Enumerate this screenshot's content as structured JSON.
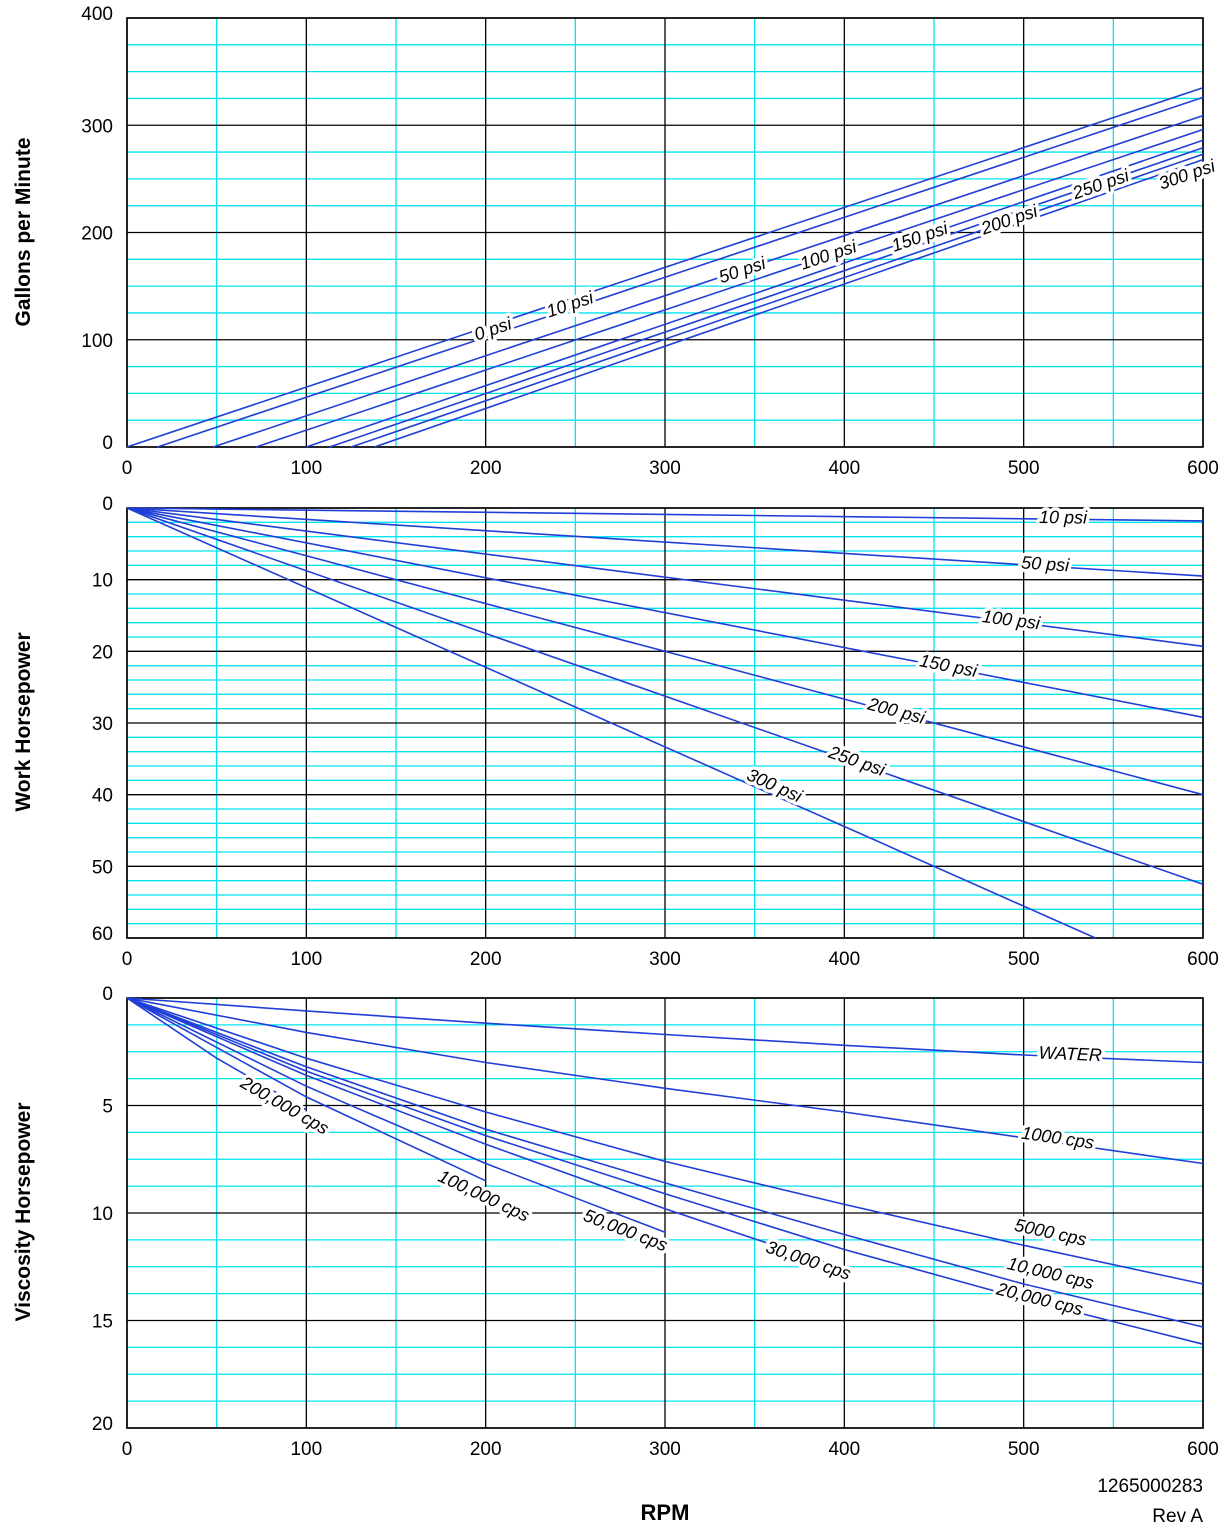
{
  "colors": {
    "major_grid": "#000000",
    "minor_grid": "#00e5f0",
    "curve": "#1f3fd6"
  },
  "chart_data": [
    {
      "type": "line",
      "xlabel": "",
      "ylabel": "Gallons per Minute",
      "xlim": [
        0,
        600
      ],
      "ylim": [
        0,
        400
      ],
      "inverted_y": false,
      "x_ticks": [
        "0",
        "100",
        "200",
        "300",
        "400",
        "500",
        "600"
      ],
      "y_ticks": [
        "0",
        "100",
        "200",
        "300",
        "400"
      ],
      "grid": true,
      "series": [
        {
          "name": "0 psi",
          "x": [
            0,
            600
          ],
          "y": [
            0,
            335
          ]
        },
        {
          "name": "10 psi",
          "x": [
            17,
            600
          ],
          "y": [
            0,
            326
          ]
        },
        {
          "name": "50 psi",
          "x": [
            48,
            600
          ],
          "y": [
            0,
            309
          ]
        },
        {
          "name": "100 psi",
          "x": [
            72,
            600
          ],
          "y": [
            0,
            296
          ]
        },
        {
          "name": "150 psi",
          "x": [
            100,
            600
          ],
          "y": [
            0,
            286
          ]
        },
        {
          "name": "200 psi",
          "x": [
            113,
            600
          ],
          "y": [
            0,
            279
          ]
        },
        {
          "name": "250 psi",
          "x": [
            125,
            600
          ],
          "y": [
            0,
            273
          ]
        },
        {
          "name": "300 psi",
          "x": [
            138,
            600
          ],
          "y": [
            0,
            268
          ]
        }
      ],
      "annotations": [
        {
          "text": "0 psi",
          "x": 204,
          "y": 110
        },
        {
          "text": "10 psi",
          "x": 247,
          "y": 133
        },
        {
          "text": "50 psi",
          "x": 343,
          "y": 165
        },
        {
          "text": "100 psi",
          "x": 391,
          "y": 179
        },
        {
          "text": "150 psi",
          "x": 442,
          "y": 196
        },
        {
          "text": "200 psi",
          "x": 492,
          "y": 212
        },
        {
          "text": "250 psi",
          "x": 543,
          "y": 245
        },
        {
          "text": "300 psi",
          "x": 591,
          "y": 254
        }
      ]
    },
    {
      "type": "line",
      "xlabel": "",
      "ylabel": "Work Horsepower",
      "xlim": [
        0,
        600
      ],
      "ylim": [
        0,
        60
      ],
      "inverted_y": true,
      "x_ticks": [
        "0",
        "100",
        "200",
        "300",
        "400",
        "500",
        "600"
      ],
      "y_ticks": [
        "0",
        "10",
        "20",
        "30",
        "40",
        "50",
        "60"
      ],
      "grid": true,
      "series": [
        {
          "name": "10 psi",
          "x": [
            0,
            600
          ],
          "y": [
            0,
            1.8
          ]
        },
        {
          "name": "50 psi",
          "x": [
            0,
            600
          ],
          "y": [
            0,
            9.5
          ]
        },
        {
          "name": "100 psi",
          "x": [
            0,
            600
          ],
          "y": [
            0,
            19.3
          ]
        },
        {
          "name": "150 psi",
          "x": [
            0,
            600
          ],
          "y": [
            0,
            29.2
          ]
        },
        {
          "name": "200 psi",
          "x": [
            0,
            600
          ],
          "y": [
            0,
            40.0
          ]
        },
        {
          "name": "250 psi",
          "x": [
            0,
            600
          ],
          "y": [
            0,
            52.5
          ]
        },
        {
          "name": "300 psi",
          "x": [
            0,
            540
          ],
          "y": [
            0,
            60
          ]
        }
      ],
      "annotations": [
        {
          "text": "10 psi",
          "x": 522,
          "y": 1.3
        },
        {
          "text": "50 psi",
          "x": 512,
          "y": 7.8
        },
        {
          "text": "100 psi",
          "x": 493,
          "y": 15.6
        },
        {
          "text": "150 psi",
          "x": 458,
          "y": 22.0
        },
        {
          "text": "200 psi",
          "x": 429,
          "y": 28.3
        },
        {
          "text": "250 psi",
          "x": 407,
          "y": 35.3
        },
        {
          "text": "300 psi",
          "x": 361,
          "y": 38.7
        }
      ]
    },
    {
      "type": "line",
      "xlabel": "RPM",
      "ylabel": "Viscosity Horsepower",
      "xlim": [
        0,
        600
      ],
      "ylim": [
        0,
        20
      ],
      "inverted_y": true,
      "x_ticks": [
        "0",
        "100",
        "200",
        "300",
        "400",
        "500",
        "600"
      ],
      "y_ticks": [
        "0",
        "5",
        "10",
        "15",
        "20"
      ],
      "grid": true,
      "series": [
        {
          "name": "WATER",
          "x": [
            0,
            100,
            200,
            300,
            400,
            500,
            600
          ],
          "y": [
            0,
            0.6,
            1.17,
            1.7,
            2.2,
            2.65,
            3.0
          ]
        },
        {
          "name": "1000 cps",
          "x": [
            0,
            100,
            200,
            300,
            400,
            500,
            600
          ],
          "y": [
            0,
            1.6,
            3.0,
            4.2,
            5.3,
            6.5,
            7.7
          ]
        },
        {
          "name": "5000 cps",
          "x": [
            0,
            100,
            200,
            300,
            400,
            500,
            600
          ],
          "y": [
            0,
            2.8,
            5.3,
            7.6,
            9.6,
            11.5,
            13.3
          ]
        },
        {
          "name": "10,000 cps",
          "x": [
            0,
            100,
            200,
            300,
            400,
            500,
            600
          ],
          "y": [
            0,
            3.2,
            6.1,
            8.6,
            11.0,
            13.3,
            15.3
          ]
        },
        {
          "name": "20,000 cps",
          "x": [
            0,
            100,
            200,
            300,
            400,
            500,
            600
          ],
          "y": [
            0,
            3.4,
            6.4,
            9.1,
            11.7,
            14.0,
            16.1
          ]
        },
        {
          "name": "30,000 cps",
          "x": [
            0,
            100,
            200,
            300,
            400
          ],
          "y": [
            0,
            3.6,
            6.8,
            9.8,
            12.6
          ]
        },
        {
          "name": "50,000 cps",
          "x": [
            0,
            100,
            200,
            300
          ],
          "y": [
            0,
            4.1,
            7.7,
            10.9
          ]
        },
        {
          "name": "100,000 cps",
          "x": [
            0,
            100,
            200
          ],
          "y": [
            0,
            4.6,
            8.5
          ]
        },
        {
          "name": "200,000 cps",
          "x": [
            0,
            50,
            100
          ],
          "y": [
            0,
            2.8,
            5.2
          ]
        }
      ],
      "annotations": [
        {
          "text": "WATER",
          "x": 526,
          "y": 2.6
        },
        {
          "text": "1000 cps",
          "x": 519,
          "y": 6.5
        },
        {
          "text": "5000 cps",
          "x": 515,
          "y": 10.9
        },
        {
          "text": "10,000 cps",
          "x": 515,
          "y": 12.8
        },
        {
          "text": "20,000 cps",
          "x": 509,
          "y": 14.0
        },
        {
          "text": "30,000 cps",
          "x": 380,
          "y": 12.2
        },
        {
          "text": "50,000 cps",
          "x": 278,
          "y": 10.8
        },
        {
          "text": "100,000 cps",
          "x": 199,
          "y": 9.2
        },
        {
          "text": "200,000 cps",
          "x": 88,
          "y": 5.0
        }
      ]
    }
  ],
  "footer": {
    "xlabel": "RPM",
    "drawing_number": "1265000283",
    "revision": "Rev A"
  }
}
